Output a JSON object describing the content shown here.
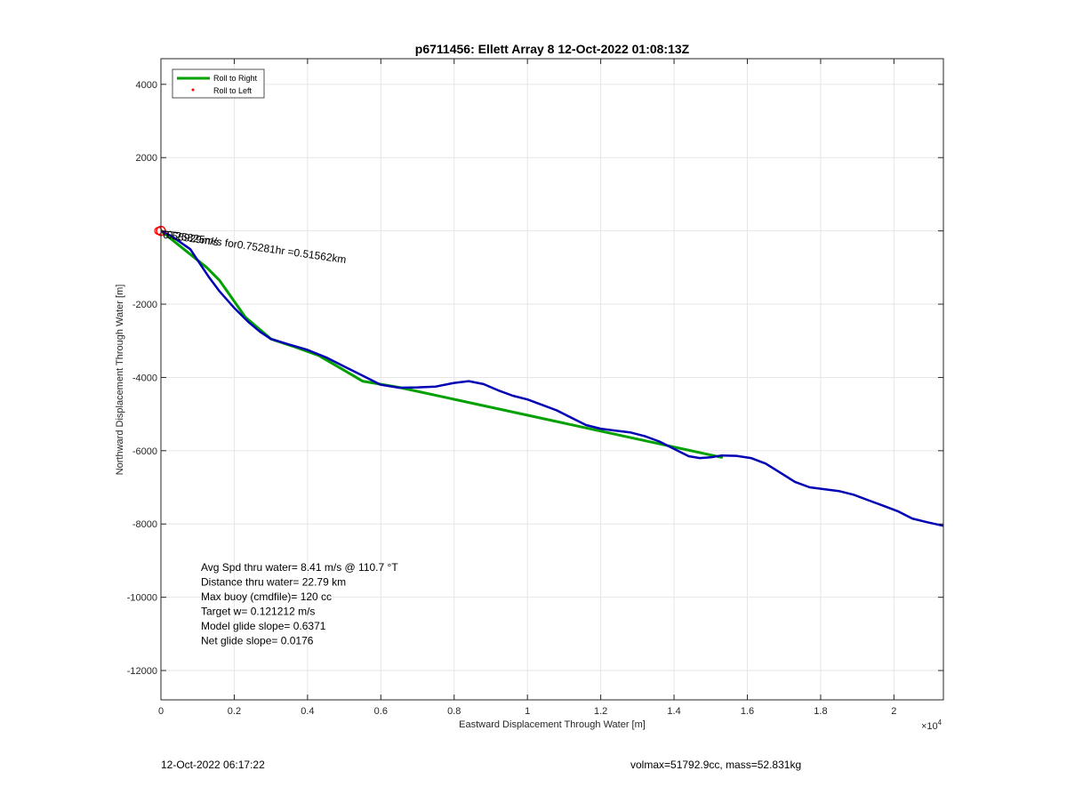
{
  "chart_data": {
    "type": "line",
    "title": "p6711456: Ellett Array 8 12-Oct-2022 01:08:13Z",
    "xlabel": "Eastward Displacement Through Water [m]",
    "ylabel": "Northward Displacement Through Water [m]",
    "x_exponent_label": "×10",
    "x_exponent_power": "4",
    "xlim": [
      0,
      21350
    ],
    "ylim": [
      -12800,
      4700
    ],
    "x_ticks": [
      0,
      2000,
      4000,
      6000,
      8000,
      10000,
      12000,
      14000,
      16000,
      18000,
      20000
    ],
    "x_tick_labels": [
      "0",
      "0.2",
      "0.4",
      "0.6",
      "0.8",
      "1",
      "1.2",
      "1.4",
      "1.6",
      "1.8",
      "2"
    ],
    "y_ticks": [
      4000,
      2000,
      0,
      -2000,
      -4000,
      -6000,
      -8000,
      -10000,
      -12000
    ],
    "y_tick_labels": [
      "4000",
      "2000",
      "",
      "-2000",
      "-4000",
      "-6000",
      "-8000",
      "-10000",
      "-12000"
    ],
    "grid": true,
    "legend_position": "top-left",
    "series": [
      {
        "name": "Roll to Right",
        "color": "#00a000",
        "x": [
          0,
          1250,
          1250,
          1600,
          2300,
          3000,
          3600,
          4300,
          4900,
          5500,
          6500,
          6500,
          15300
        ],
        "y": [
          0,
          -1000,
          -1000,
          -1350,
          -2350,
          -2950,
          -3150,
          -3400,
          -3750,
          -4100,
          -4270,
          -4270,
          -6180
        ]
      },
      {
        "name": "Roll to Left",
        "color": "#ff0000",
        "x": [],
        "y": []
      },
      {
        "name": "",
        "color": "#0000b4",
        "x": [
          0,
          300,
          800,
          1000,
          1300,
          1600,
          2000,
          2400,
          2700,
          3000,
          3500,
          4000,
          4500,
          5000,
          5500,
          6000,
          6500,
          7000,
          7500,
          8000,
          8400,
          8800,
          9200,
          9600,
          10000,
          10400,
          10800,
          11200,
          11600,
          12000,
          12400,
          12800,
          13200,
          13600,
          14000,
          14400,
          14700,
          15000,
          15300,
          15700,
          16100,
          16500,
          16900,
          17300,
          17700,
          18100,
          18500,
          18900,
          19300,
          19700,
          20100,
          20500,
          20900,
          21350
        ],
        "y": [
          0,
          -150,
          -500,
          -800,
          -1250,
          -1650,
          -2100,
          -2500,
          -2750,
          -2950,
          -3100,
          -3250,
          -3450,
          -3700,
          -3950,
          -4200,
          -4280,
          -4270,
          -4250,
          -4150,
          -4100,
          -4180,
          -4350,
          -4500,
          -4600,
          -4750,
          -4900,
          -5100,
          -5300,
          -5400,
          -5450,
          -5500,
          -5600,
          -5750,
          -5950,
          -6150,
          -6200,
          -6180,
          -6130,
          -6140,
          -6200,
          -6350,
          -6600,
          -6850,
          -7000,
          -7050,
          -7100,
          -7200,
          -7350,
          -7500,
          -7650,
          -7850,
          -7950,
          -8050
        ]
      }
    ],
    "annotations": {
      "segment_label": "0.25825m/s for0.75281hr =0.51562km",
      "overlap_label": "0.58929m/s"
    },
    "info_box": [
      "Avg Spd thru water=  8.41 m/s @ 110.7 °T",
      "Distance thru water= 22.79 km",
      "Max buoy (cmdfile)= 120 cc",
      "Target w= 0.121212 m/s",
      "Model glide slope= 0.6371",
      "Net glide slope= 0.0176"
    ]
  },
  "footer": {
    "timestamp": "12-Oct-2022 06:17:22",
    "vol_mass": "volmax=51792.9cc, mass=52.831kg"
  }
}
